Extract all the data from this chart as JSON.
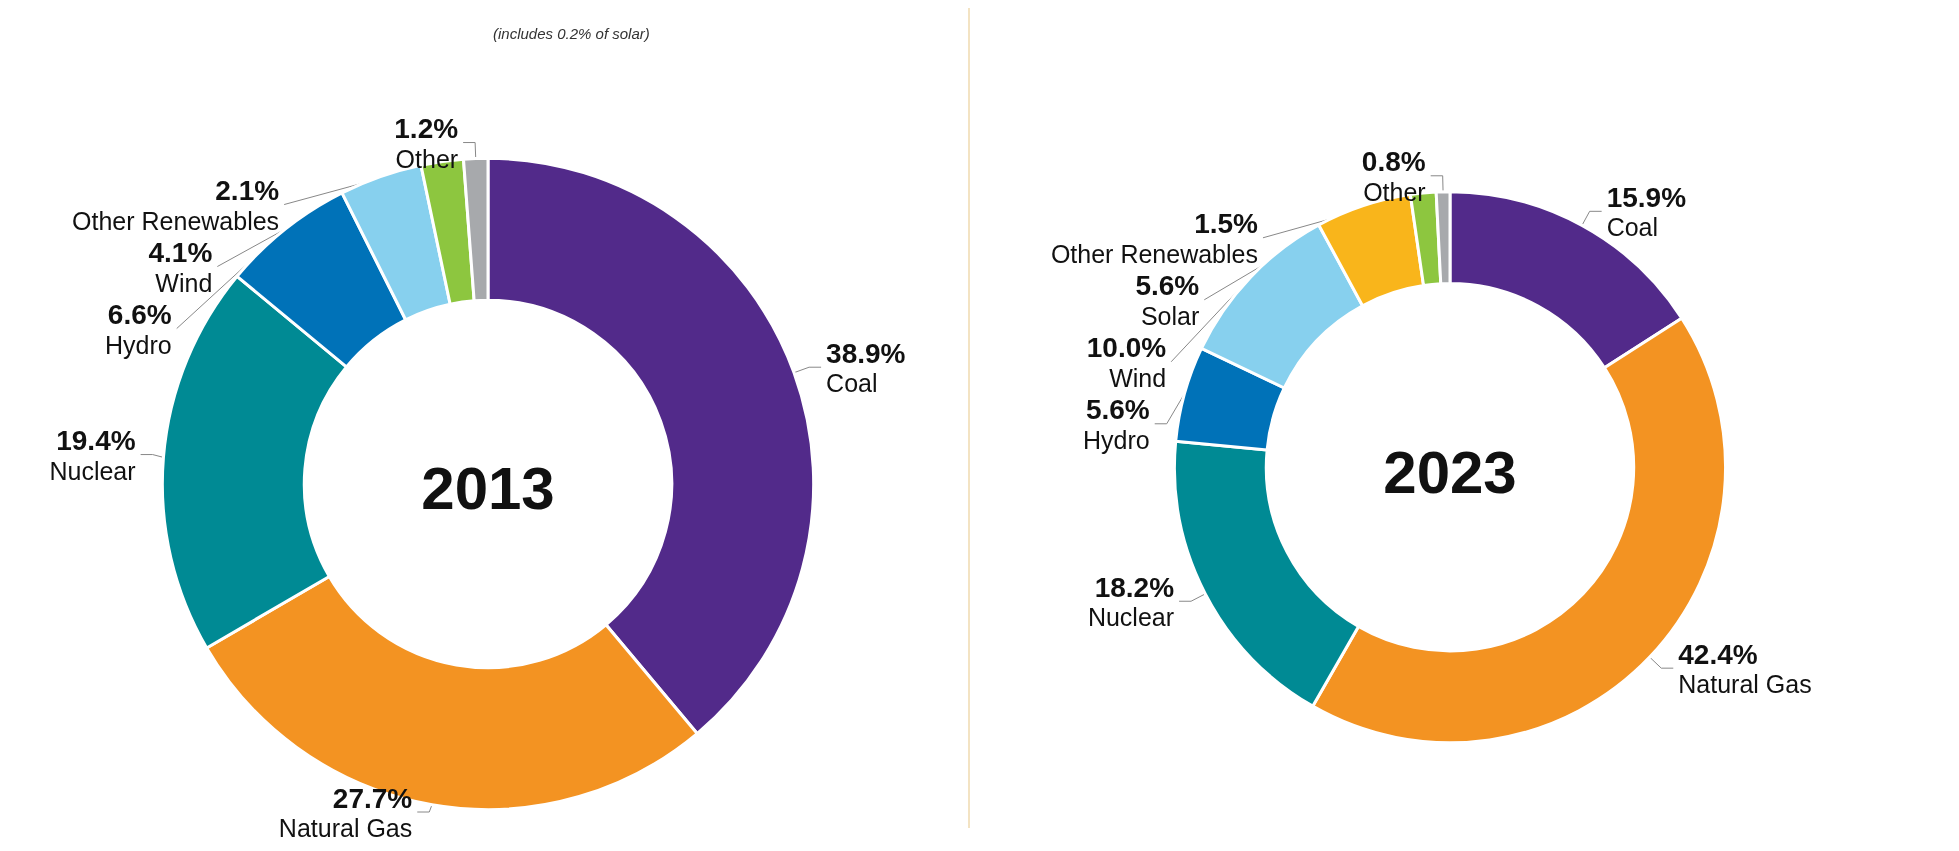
{
  "chart_data": [
    {
      "type": "donut",
      "title": "2013",
      "categories": [
        "Coal",
        "Natural Gas",
        "Nuclear",
        "Hydro",
        "Wind",
        "Other Renewables",
        "Other"
      ],
      "values": [
        38.9,
        27.7,
        19.4,
        6.6,
        4.1,
        2.1,
        1.2
      ],
      "value_labels": [
        "38.9%",
        "27.7%",
        "19.4%",
        "6.6%",
        "4.1%",
        "2.1%",
        "1.2%"
      ],
      "colors": [
        "#522a8a",
        "#f39322",
        "#008a94",
        "#0072b8",
        "#87d0ee",
        "#8dc63f",
        "#a7a9ac"
      ],
      "annotations": [
        "(includes 0.2% of solar)"
      ],
      "legend": false
    },
    {
      "type": "donut",
      "title": "2023",
      "categories": [
        "Coal",
        "Natural Gas",
        "Nuclear",
        "Hydro",
        "Wind",
        "Solar",
        "Other Renewables",
        "Other"
      ],
      "values": [
        15.9,
        42.4,
        18.2,
        5.6,
        10.0,
        5.6,
        1.5,
        0.8
      ],
      "value_labels": [
        "15.9%",
        "42.4%",
        "18.2%",
        "5.6%",
        "10.0%",
        "5.6%",
        "1.5%",
        "0.8%"
      ],
      "colors": [
        "#522a8a",
        "#f39322",
        "#008a94",
        "#0072b8",
        "#87d0ee",
        "#f9b51b",
        "#8dc63f",
        "#a7a9ac"
      ],
      "legend": false
    }
  ]
}
